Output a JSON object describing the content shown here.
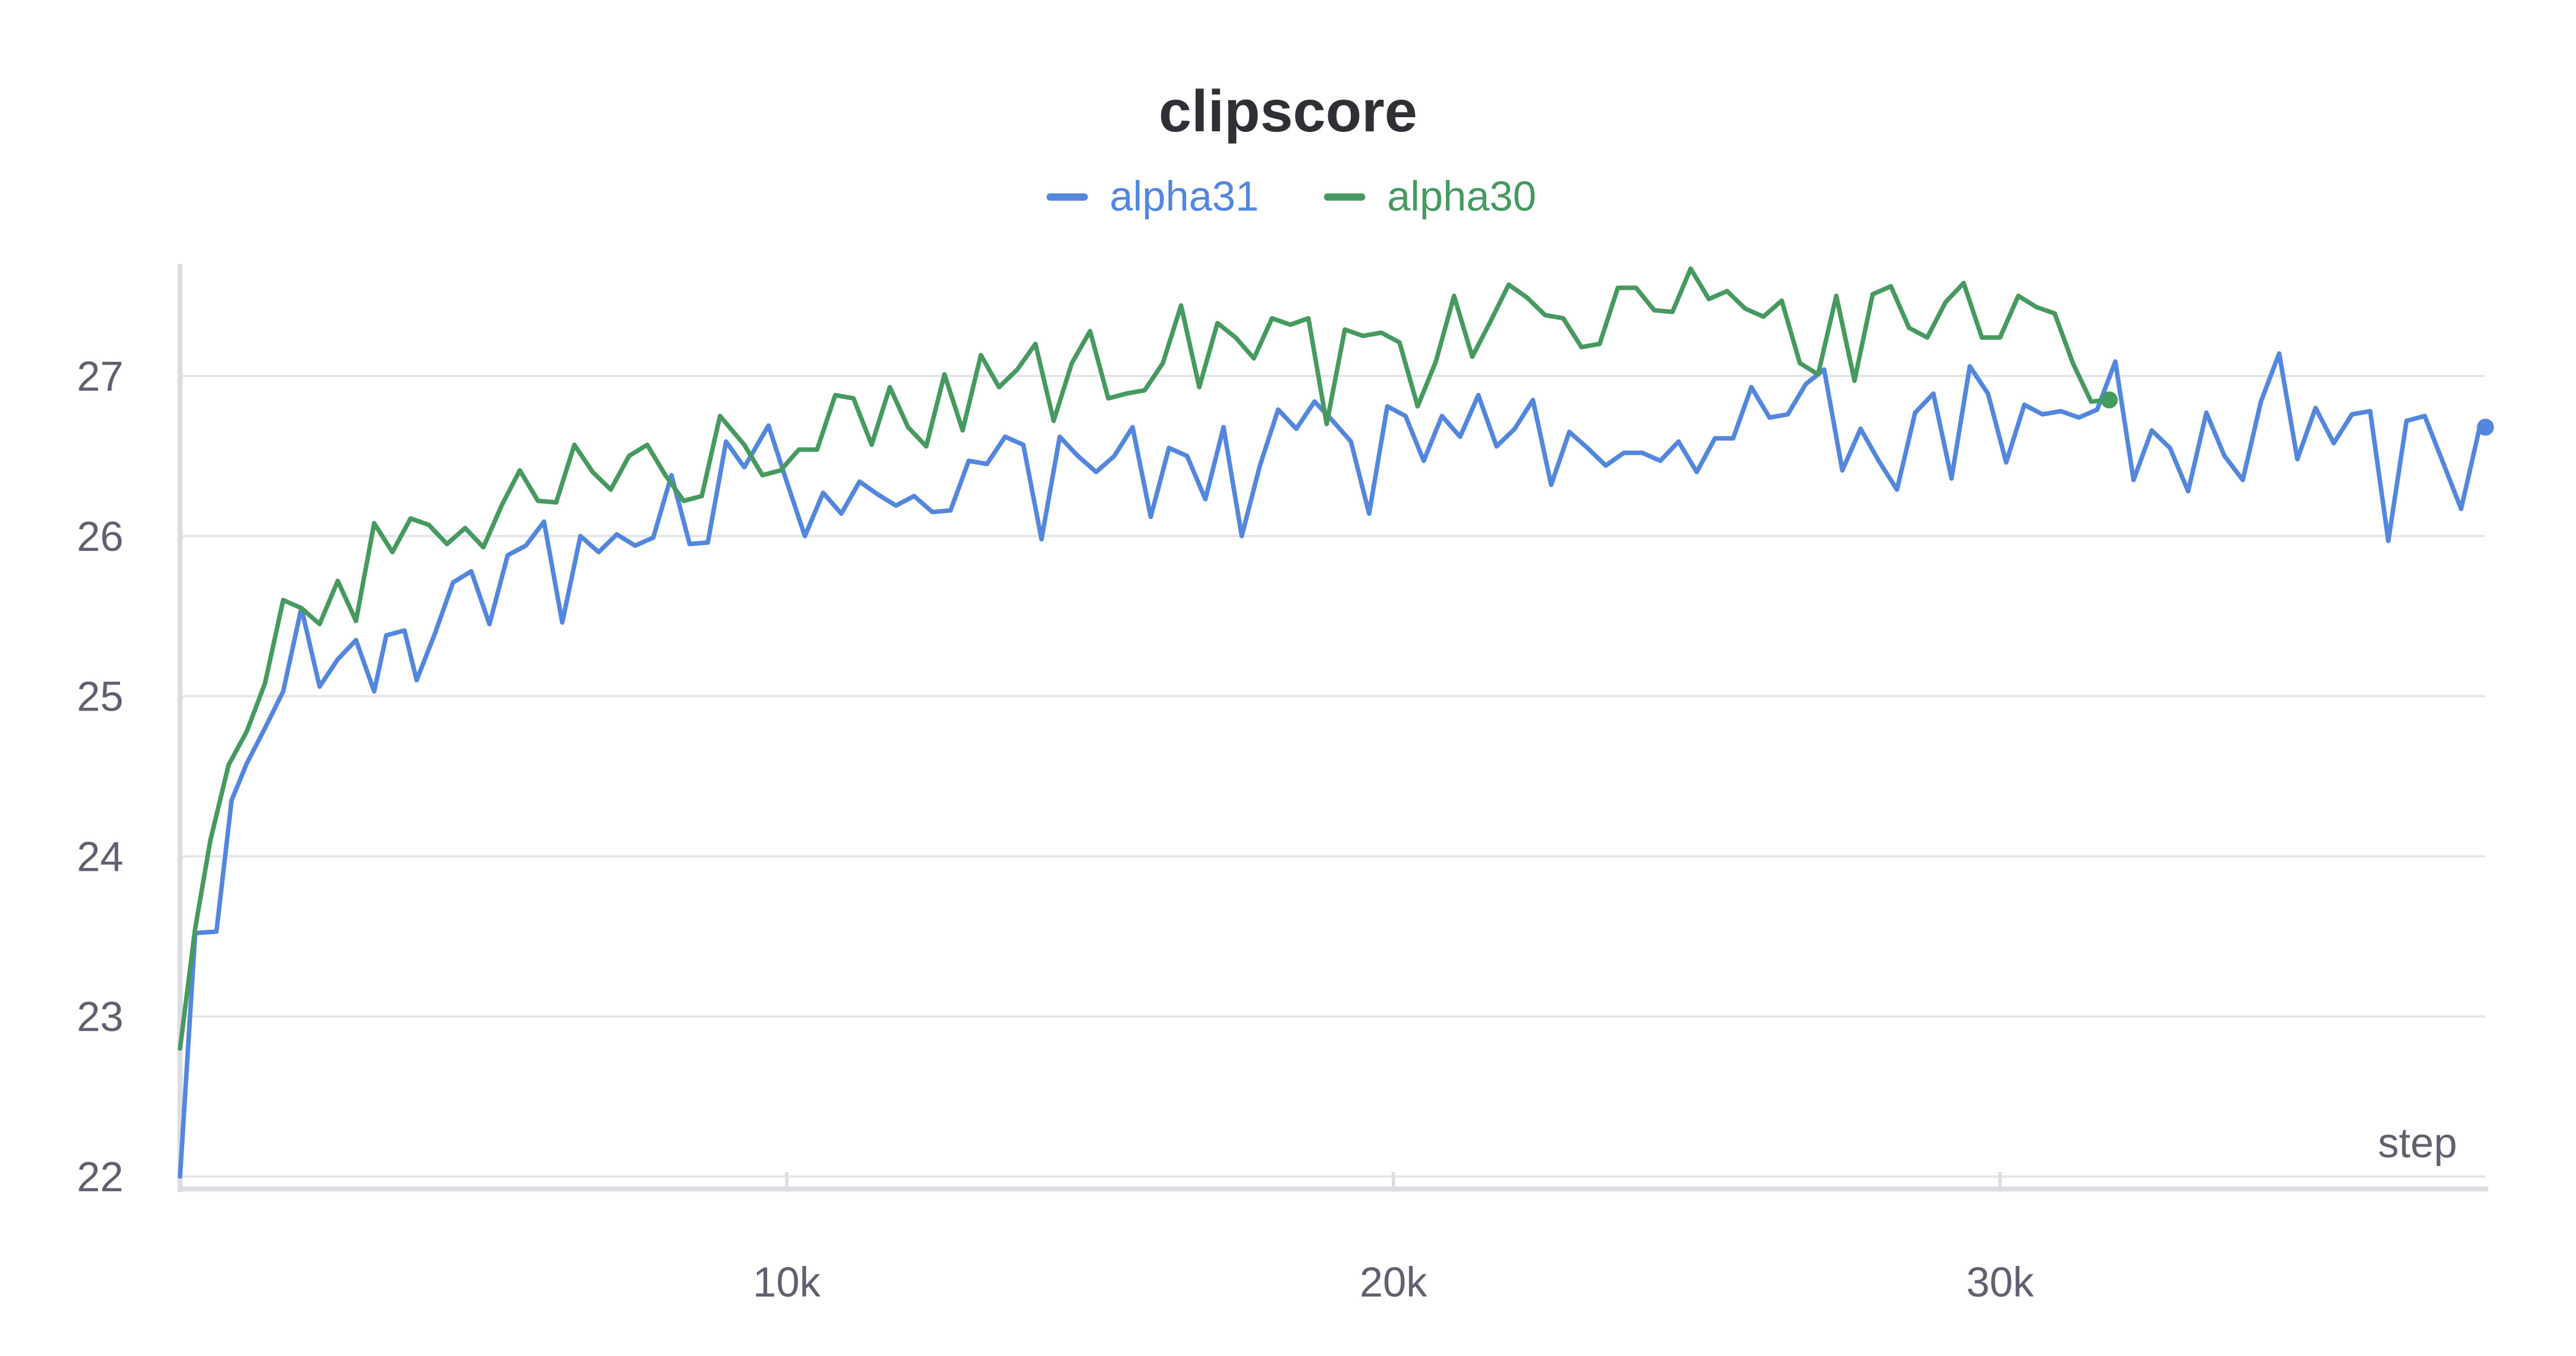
{
  "chart_data": {
    "type": "line",
    "title": "clipscore",
    "xlabel": "step",
    "ylabel": "",
    "xlim": [
      0,
      38000
    ],
    "ylim": [
      22,
      27.7
    ],
    "x_ticks": [
      10000,
      20000,
      30000
    ],
    "x_tick_labels": [
      "10k",
      "20k",
      "30k"
    ],
    "y_ticks": [
      22,
      23,
      24,
      25,
      26,
      27
    ],
    "y_tick_labels": [
      "22",
      "23",
      "24",
      "25",
      "26",
      "27"
    ],
    "grid": true,
    "legend_position": "top-center",
    "series": [
      {
        "name": "alpha31",
        "color": "#5387dd",
        "end_marker": true,
        "x": [
          0,
          250,
          600,
          850,
          1100,
          1400,
          1700,
          2000,
          2300,
          2600,
          2900,
          3200,
          3400,
          3700,
          3900,
          4200,
          4500,
          4800,
          5100,
          5400,
          5700,
          6000,
          6300,
          6600,
          6900,
          7200,
          7500,
          7800,
          8100,
          8400,
          8700,
          9000,
          9300,
          9700,
          10000,
          10300,
          10600,
          10900,
          11200,
          11500,
          11800,
          12100,
          12400,
          12700,
          13000,
          13300,
          13600,
          13900,
          14200,
          14500,
          14800,
          15100,
          15400,
          15700,
          16000,
          16300,
          16600,
          16900,
          17200,
          17500,
          17800,
          18100,
          18400,
          18700,
          19000,
          19300,
          19600,
          19900,
          20200,
          20500,
          20800,
          21100,
          21400,
          21700,
          22000,
          22300,
          22600,
          22900,
          23200,
          23500,
          23800,
          24100,
          24400,
          24700,
          25000,
          25300,
          25600,
          25900,
          26200,
          26500,
          26800,
          27100,
          27400,
          27700,
          28000,
          28300,
          28600,
          28900,
          29200,
          29500,
          29800,
          30100,
          30400,
          30700,
          31000,
          31300,
          31600,
          31900,
          32200,
          32500,
          32800,
          33100,
          33400,
          33700,
          34000,
          34300,
          34600,
          34900,
          35200,
          35500,
          35800,
          36100,
          36400,
          36700,
          37000,
          37300,
          37600,
          37900,
          38000
        ],
        "y": [
          22.0,
          23.52,
          23.53,
          24.35,
          24.58,
          24.8,
          25.03,
          25.55,
          25.06,
          25.23,
          25.35,
          25.03,
          25.38,
          25.41,
          25.1,
          25.39,
          25.71,
          25.78,
          25.45,
          25.88,
          25.94,
          26.09,
          25.46,
          26.0,
          25.9,
          26.01,
          25.94,
          25.99,
          26.38,
          25.95,
          25.96,
          26.59,
          26.43,
          26.69,
          26.34,
          26.0,
          26.27,
          26.14,
          26.34,
          26.26,
          26.19,
          26.25,
          26.15,
          26.16,
          26.47,
          26.45,
          26.62,
          26.57,
          25.98,
          26.62,
          26.5,
          26.4,
          26.5,
          26.68,
          26.12,
          26.55,
          26.5,
          26.23,
          26.68,
          26.0,
          26.44,
          26.79,
          26.67,
          26.84,
          26.72,
          26.59,
          26.14,
          26.81,
          26.75,
          26.47,
          26.75,
          26.62,
          26.88,
          26.56,
          26.67,
          26.85,
          26.32,
          26.65,
          26.55,
          26.44,
          26.52,
          26.52,
          26.47,
          26.59,
          26.4,
          26.61,
          26.61,
          26.93,
          26.74,
          26.76,
          26.95,
          27.04,
          26.41,
          26.67,
          26.47,
          26.29,
          26.77,
          26.89,
          26.36,
          27.06,
          26.89,
          26.46,
          26.82,
          26.76,
          26.78,
          26.74,
          26.79,
          27.09,
          26.35,
          26.66,
          26.55,
          26.28,
          26.77,
          26.5,
          26.35,
          26.84,
          27.14,
          26.48,
          26.8,
          26.58,
          26.76,
          26.78,
          25.97,
          26.72,
          26.75,
          26.46,
          26.17,
          26.67,
          26.68
        ]
      },
      {
        "name": "alpha30",
        "color": "#479a5f",
        "end_marker": true,
        "x": [
          0,
          250,
          500,
          800,
          1100,
          1400,
          1700,
          2000,
          2300,
          2600,
          2900,
          3200,
          3500,
          3800,
          4100,
          4400,
          4700,
          5000,
          5300,
          5600,
          5900,
          6200,
          6500,
          6800,
          7100,
          7400,
          7700,
          8000,
          8300,
          8600,
          8900,
          9300,
          9600,
          9900,
          10200,
          10500,
          10800,
          11100,
          11400,
          11700,
          12000,
          12300,
          12600,
          12900,
          13200,
          13500,
          13800,
          14100,
          14400,
          14700,
          15000,
          15300,
          15600,
          15900,
          16200,
          16500,
          16800,
          17100,
          17400,
          17700,
          18000,
          18300,
          18600,
          18900,
          19200,
          19500,
          19800,
          20100,
          20400,
          20700,
          21000,
          21300,
          21600,
          21900,
          22200,
          22500,
          22800,
          23100,
          23400,
          23700,
          24000,
          24300,
          24600,
          24900,
          25200,
          25500,
          25800,
          26100,
          26400,
          26700,
          27000,
          27300,
          27600,
          27900,
          28200,
          28500,
          28800,
          29100,
          29400,
          29700,
          30000,
          30300,
          30600,
          30900,
          31200,
          31500,
          31800
        ],
        "y": [
          22.8,
          23.55,
          24.1,
          24.57,
          24.78,
          25.08,
          25.6,
          25.55,
          25.45,
          25.72,
          25.47,
          26.08,
          25.9,
          26.11,
          26.07,
          25.95,
          26.05,
          25.93,
          26.19,
          26.41,
          26.22,
          26.21,
          26.57,
          26.4,
          26.29,
          26.5,
          26.57,
          26.38,
          26.22,
          26.25,
          26.75,
          26.57,
          26.38,
          26.41,
          26.54,
          26.54,
          26.88,
          26.86,
          26.57,
          26.93,
          26.68,
          26.56,
          27.01,
          26.66,
          27.13,
          26.93,
          27.04,
          27.2,
          26.72,
          27.08,
          27.28,
          26.86,
          26.89,
          26.91,
          27.08,
          27.44,
          26.93,
          27.33,
          27.24,
          27.11,
          27.36,
          27.32,
          27.36,
          26.7,
          27.29,
          27.25,
          27.27,
          27.21,
          26.81,
          27.09,
          27.5,
          27.12,
          27.34,
          27.57,
          27.49,
          27.38,
          27.36,
          27.18,
          27.2,
          27.55,
          27.55,
          27.41,
          27.4,
          27.67,
          27.48,
          27.53,
          27.42,
          27.37,
          27.47,
          27.08,
          27.01,
          27.5,
          26.97,
          27.51,
          27.56,
          27.3,
          27.24,
          27.46,
          27.58,
          27.24,
          27.24,
          27.5,
          27.43,
          27.39,
          27.08,
          26.84,
          26.85
        ]
      }
    ]
  }
}
